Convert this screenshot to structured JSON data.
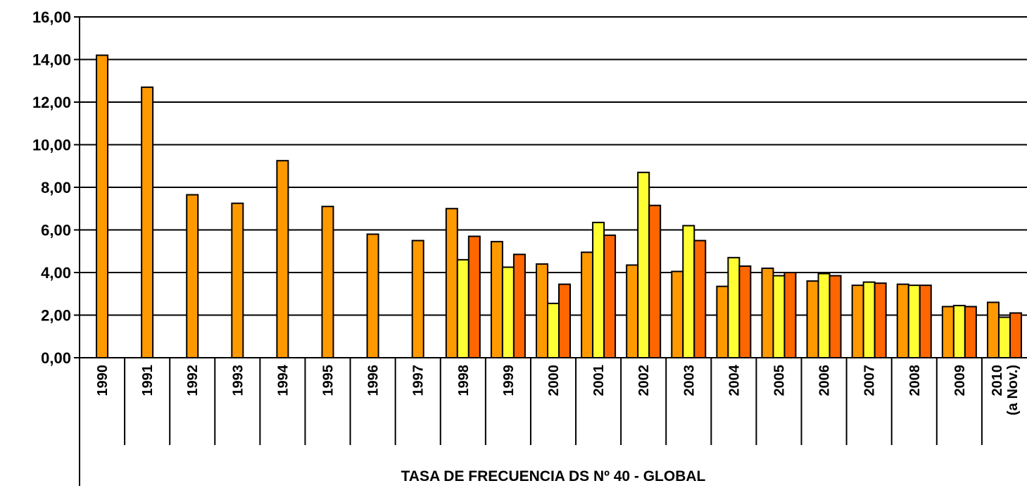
{
  "chart_data": {
    "type": "bar",
    "title": "",
    "xlabel": "TASA DE FRECUENCIA DS Nº 40 - GLOBAL",
    "ylabel": "",
    "ylim": [
      0,
      16
    ],
    "yticks": [
      "0,00",
      "2,00",
      "4,00",
      "6,00",
      "8,00",
      "10,00",
      "12,00",
      "14,00",
      "16,00"
    ],
    "grid": true,
    "legend": "none",
    "categories": [
      [
        "1990"
      ],
      [
        "1991"
      ],
      [
        "1992"
      ],
      [
        "1993"
      ],
      [
        "1994"
      ],
      [
        "1995"
      ],
      [
        "1996"
      ],
      [
        "1997"
      ],
      [
        "1998"
      ],
      [
        "1999"
      ],
      [
        "2000"
      ],
      [
        "2001"
      ],
      [
        "2002"
      ],
      [
        "2003"
      ],
      [
        "2004"
      ],
      [
        "2005"
      ],
      [
        "2006"
      ],
      [
        "2007"
      ],
      [
        "2008"
      ],
      [
        "2009"
      ],
      [
        "2010",
        "(a Nov.)"
      ]
    ],
    "series": [
      {
        "color": "#FF9900",
        "values": [
          14.2,
          12.7,
          7.65,
          7.25,
          9.25,
          7.1,
          5.8,
          5.5,
          7.0,
          5.45,
          4.4,
          4.95,
          4.35,
          4.05,
          3.35,
          4.2,
          3.6,
          3.4,
          3.45,
          2.4,
          2.6
        ]
      },
      {
        "color": "#FFFF33",
        "values": [
          null,
          null,
          null,
          null,
          null,
          null,
          null,
          null,
          4.6,
          4.25,
          2.55,
          6.35,
          8.7,
          6.2,
          4.7,
          3.85,
          3.95,
          3.55,
          3.4,
          2.45,
          1.9
        ]
      },
      {
        "color": "#FF6600",
        "values": [
          null,
          null,
          null,
          null,
          null,
          null,
          null,
          null,
          5.7,
          4.85,
          3.45,
          5.75,
          7.15,
          5.5,
          4.3,
          4.0,
          3.85,
          3.5,
          3.4,
          2.4,
          2.1
        ]
      }
    ]
  }
}
